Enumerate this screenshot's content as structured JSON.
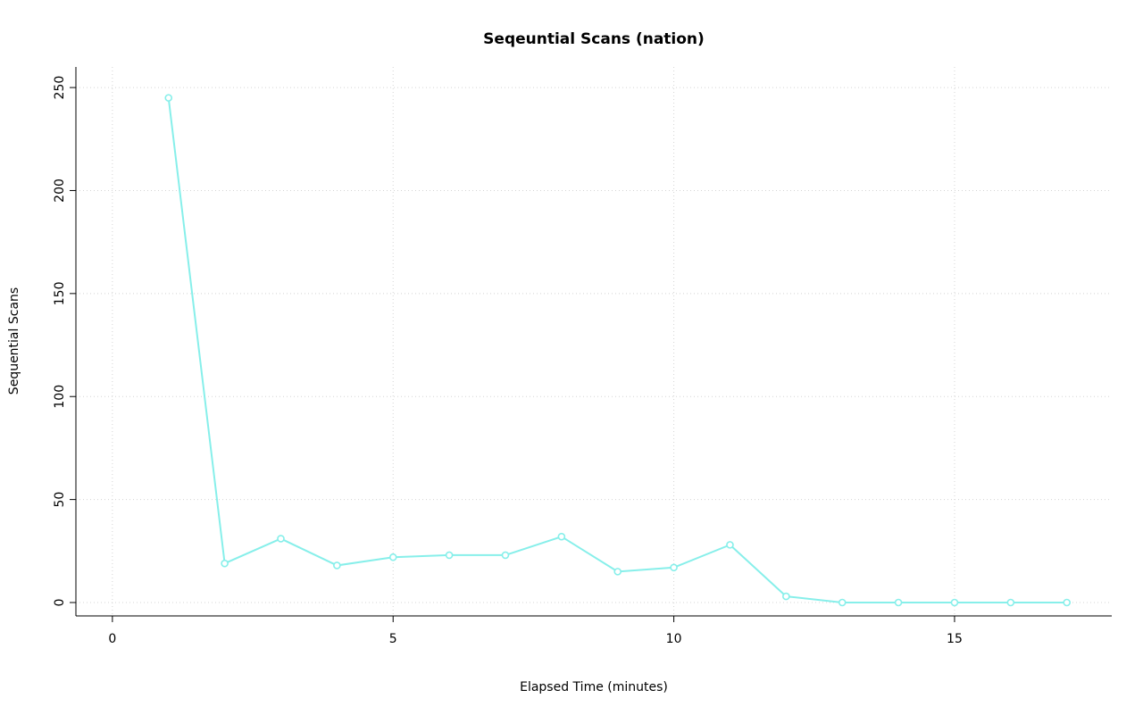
{
  "chart_data": {
    "type": "line",
    "title": "Seqeuntial Scans (nation)",
    "xlabel": "Elapsed Time (minutes)",
    "ylabel": "Sequential Scans",
    "x": [
      1,
      2,
      3,
      4,
      5,
      6,
      7,
      8,
      9,
      10,
      11,
      12,
      13,
      14,
      15,
      16,
      17
    ],
    "y": [
      245,
      19,
      31,
      18,
      22,
      23,
      23,
      32,
      15,
      17,
      28,
      3,
      0,
      0,
      0,
      0,
      0
    ],
    "xlim": [
      -0.65,
      17.8
    ],
    "ylim": [
      -6.5,
      260
    ],
    "xticks": [
      0,
      5,
      10,
      15
    ],
    "yticks": [
      0,
      50,
      100,
      150,
      200,
      250
    ],
    "grid": true,
    "legend": "none",
    "line_color": "#87efea",
    "marker": "open-circle",
    "marker_color": "#87efea",
    "grid_color": "#d4d4d4",
    "axis_color": "#000000",
    "text_color": "#000000",
    "background": "#ffffff"
  }
}
